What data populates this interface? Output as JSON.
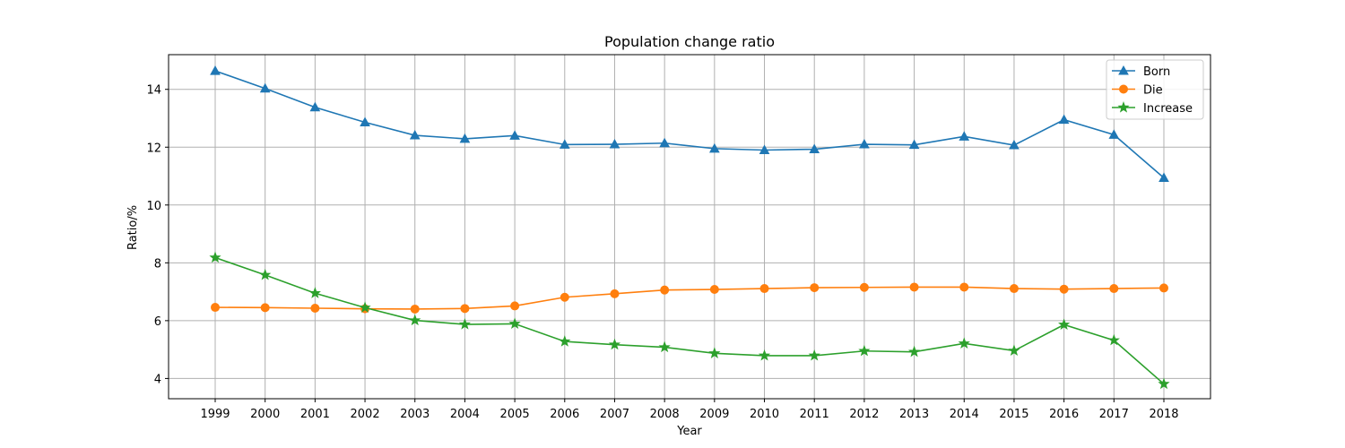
{
  "chart_data": {
    "type": "line",
    "title": "Population change ratio",
    "xlabel": "Year",
    "ylabel": "Ratio/%",
    "x": [
      "1999",
      "2000",
      "2001",
      "2002",
      "2003",
      "2004",
      "2005",
      "2006",
      "2007",
      "2008",
      "2009",
      "2010",
      "2011",
      "2012",
      "2013",
      "2014",
      "2015",
      "2016",
      "2017",
      "2018"
    ],
    "ylim": [
      3.3,
      15.2
    ],
    "yticks": [
      4,
      6,
      8,
      10,
      12,
      14
    ],
    "grid": true,
    "legend_position": "top-right",
    "series": [
      {
        "name": "Born",
        "color": "#1f77b4",
        "marker": "triangle",
        "values": [
          14.64,
          14.03,
          13.38,
          12.86,
          12.41,
          12.29,
          12.4,
          12.09,
          12.1,
          12.14,
          11.95,
          11.9,
          11.93,
          12.1,
          12.08,
          12.37,
          12.07,
          12.95,
          12.43,
          10.94
        ]
      },
      {
        "name": "Die",
        "color": "#ff7f0e",
        "marker": "circle",
        "values": [
          6.46,
          6.45,
          6.43,
          6.41,
          6.4,
          6.42,
          6.51,
          6.81,
          6.93,
          7.06,
          7.08,
          7.11,
          7.14,
          7.15,
          7.16,
          7.16,
          7.11,
          7.09,
          7.11,
          7.13
        ]
      },
      {
        "name": "Increase",
        "color": "#2ca02c",
        "marker": "star",
        "values": [
          8.18,
          7.58,
          6.95,
          6.45,
          6.01,
          5.87,
          5.89,
          5.28,
          5.17,
          5.08,
          4.87,
          4.79,
          4.79,
          4.95,
          4.92,
          5.21,
          4.96,
          5.86,
          5.32,
          3.81
        ]
      }
    ]
  }
}
